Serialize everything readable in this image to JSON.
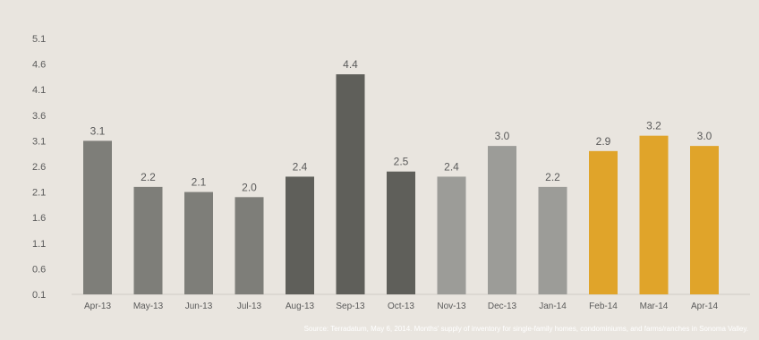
{
  "chart_data": {
    "type": "bar",
    "categories": [
      "Apr-13",
      "May-13",
      "Jun-13",
      "Jul-13",
      "Aug-13",
      "Sep-13",
      "Oct-13",
      "Nov-13",
      "Dec-13",
      "Jan-14",
      "Feb-14",
      "Mar-14",
      "Apr-14"
    ],
    "values": [
      3.1,
      2.2,
      2.1,
      2.0,
      2.4,
      4.4,
      2.5,
      2.4,
      3.0,
      2.2,
      2.9,
      3.2,
      3.0
    ],
    "data_labels": [
      "3.1",
      "2.2",
      "2.1",
      "2.0",
      "2.4",
      "4.4",
      "2.5",
      "2.4",
      "3.0",
      "2.2",
      "2.9",
      "3.2",
      "3.0"
    ],
    "bar_colors": [
      "#7e7e79",
      "#7e7e79",
      "#7e7e79",
      "#7e7e79",
      "#5f5f5a",
      "#5f5f5a",
      "#5f5f5a",
      "#9c9c98",
      "#9c9c98",
      "#9c9c98",
      "#e0a42a",
      "#e0a42a",
      "#e0a42a"
    ],
    "y_ticks": [
      "5.1",
      "4.6",
      "4.1",
      "3.6",
      "3.1",
      "2.6",
      "2.1",
      "1.6",
      "1.1",
      "0.6",
      "0.1"
    ],
    "ylim": [
      0.1,
      5.1
    ],
    "grid": false,
    "legend": "none",
    "title": "",
    "xlabel": "",
    "ylabel": ""
  },
  "source_note": "Source: Terradatum,  May 6, 2014. Months' supply of inventory for single-family homes, condominiums, and farms/ranches in Sonoma Valley.",
  "colors": {
    "background": "#e9e5df",
    "axis_text": "#5a5a5a"
  }
}
